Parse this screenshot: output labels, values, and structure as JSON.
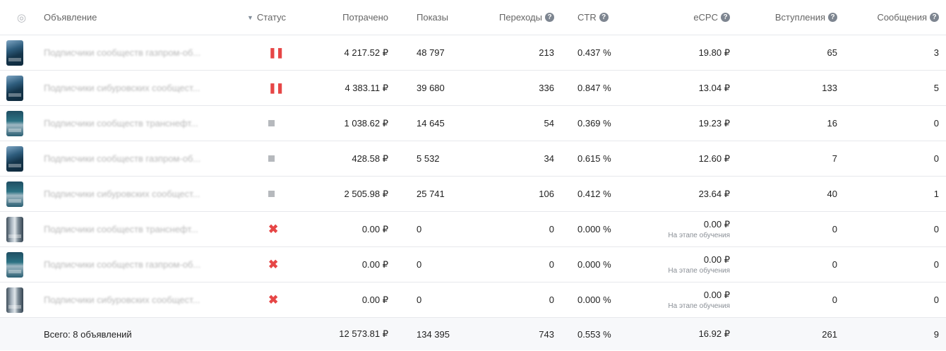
{
  "header": {
    "ad": "Объявление",
    "status": "Статус",
    "spent": "Потрачено",
    "impressions": "Показы",
    "clicks": "Переходы",
    "ctr": "CTR",
    "ecpc": "eCPC",
    "joins": "Вступления",
    "messages": "Сообщения",
    "sort_icon": "sort-down-icon",
    "eye_icon": "eye-icon",
    "help_glyph": "?"
  },
  "rows": [
    {
      "name": "Подписчики сообществ газпром-об...",
      "status": "paused",
      "spent": "4 217.52 ₽",
      "impressions": "48 797",
      "clicks": "213",
      "ctr": "0.437 %",
      "ecpc": "19.80 ₽",
      "ecpc_note": "",
      "joins": "65",
      "messages": "3"
    },
    {
      "name": "Подписчики сибуровских сообщест...",
      "status": "paused",
      "spent": "4 383.11 ₽",
      "impressions": "39 680",
      "clicks": "336",
      "ctr": "0.847 %",
      "ecpc": "13.04 ₽",
      "ecpc_note": "",
      "joins": "133",
      "messages": "5"
    },
    {
      "name": "Подписчики сообществ транснефт...",
      "status": "stopped",
      "spent": "1 038.62 ₽",
      "impressions": "14 645",
      "clicks": "54",
      "ctr": "0.369 %",
      "ecpc": "19.23 ₽",
      "ecpc_note": "",
      "joins": "16",
      "messages": "0"
    },
    {
      "name": "Подписчики сообществ газпром-об...",
      "status": "stopped",
      "spent": "428.58 ₽",
      "impressions": "5 532",
      "clicks": "34",
      "ctr": "0.615 %",
      "ecpc": "12.60 ₽",
      "ecpc_note": "",
      "joins": "7",
      "messages": "0"
    },
    {
      "name": "Подписчики сибуровских сообщест...",
      "status": "stopped",
      "spent": "2 505.98 ₽",
      "impressions": "25 741",
      "clicks": "106",
      "ctr": "0.412 %",
      "ecpc": "23.64 ₽",
      "ecpc_note": "",
      "joins": "40",
      "messages": "1"
    },
    {
      "name": "Подписчики сообществ транснефт...",
      "status": "rejected",
      "spent": "0.00 ₽",
      "impressions": "0",
      "clicks": "0",
      "ctr": "0.000 %",
      "ecpc": "0.00 ₽",
      "ecpc_note": "На этапе обучения",
      "joins": "0",
      "messages": "0"
    },
    {
      "name": "Подписчики сообществ газпром-об...",
      "status": "rejected",
      "spent": "0.00 ₽",
      "impressions": "0",
      "clicks": "0",
      "ctr": "0.000 %",
      "ecpc": "0.00 ₽",
      "ecpc_note": "На этапе обучения",
      "joins": "0",
      "messages": "0"
    },
    {
      "name": "Подписчики сибуровских сообщест...",
      "status": "rejected",
      "spent": "0.00 ₽",
      "impressions": "0",
      "clicks": "0",
      "ctr": "0.000 %",
      "ecpc": "0.00 ₽",
      "ecpc_note": "На этапе обучения",
      "joins": "0",
      "messages": "0"
    }
  ],
  "total": {
    "label": "Всего: 8 объявлений",
    "spent": "12 573.81 ₽",
    "impressions": "134 395",
    "clicks": "743",
    "ctr": "0.553 %",
    "ecpc": "16.92 ₽",
    "joins": "261",
    "messages": "9"
  },
  "colors": {
    "paused": "#e64646",
    "stopped": "#b6b9bd",
    "rejected": "#e64646",
    "border": "#e7e8ec"
  }
}
